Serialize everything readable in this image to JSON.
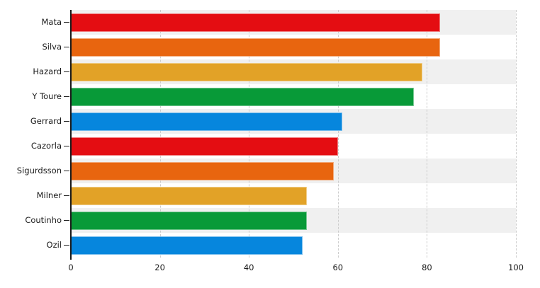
{
  "chart_data": {
    "type": "bar",
    "orientation": "horizontal",
    "title": "",
    "xlabel": "",
    "ylabel": "",
    "categories": [
      "Mata",
      "Silva",
      "Hazard",
      "Y Toure",
      "Gerrard",
      "Cazorla",
      "Sigurdsson",
      "Milner",
      "Coutinho",
      "Ozil"
    ],
    "values": [
      83,
      83,
      79,
      77,
      61,
      60,
      59,
      53,
      53,
      52
    ],
    "xlim": [
      0,
      100
    ],
    "x_ticks": [
      0,
      20,
      40,
      60,
      80,
      100
    ],
    "x_tick_labels": [
      "0",
      "20",
      "40",
      "60",
      "80",
      "100"
    ],
    "legend": "none",
    "grid": "vertical dashed gridlines at x ticks, behind bars",
    "row_bands": "alternating light-gray/white horizontal bands, gray first",
    "bar_colors_cycle": [
      "#e40d12",
      "#e8650f",
      "#e2a227",
      "#089a38",
      "#0686dd"
    ]
  },
  "colors": {
    "background": "#ffffff",
    "band": "#f0f0f0",
    "gridline": "#cccccc",
    "axis": "#1a1a1a",
    "tick": "#222222",
    "text": "#1a1a1a",
    "bar_red": "#e40d12",
    "bar_orange": "#e8650f",
    "bar_yellow": "#e2a227",
    "bar_green": "#089a38",
    "bar_blue": "#0686dd"
  }
}
